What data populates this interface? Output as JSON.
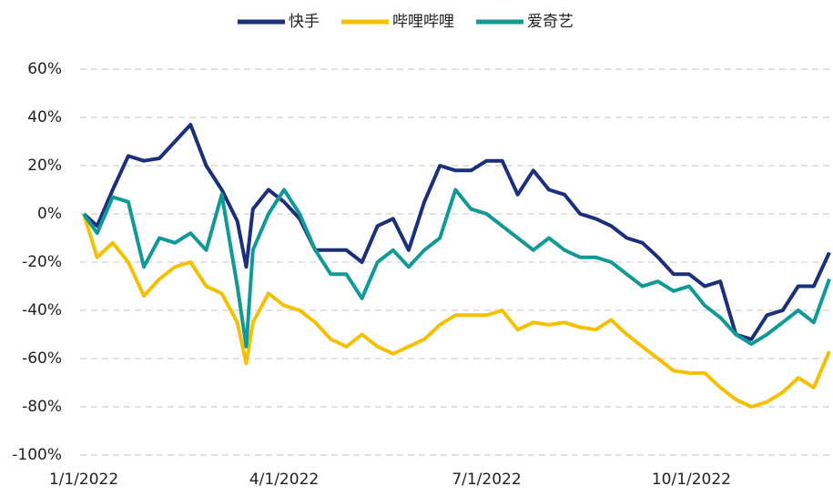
{
  "chart_data": {
    "type": "line",
    "x": [
      "1/1/2022",
      "1/7/2022",
      "1/14/2022",
      "1/21/2022",
      "1/28/2022",
      "2/4/2022",
      "2/11/2022",
      "2/18/2022",
      "2/25/2022",
      "3/4/2022",
      "3/11/2022",
      "3/15/2022",
      "3/18/2022",
      "3/25/2022",
      "4/1/2022",
      "4/8/2022",
      "4/15/2022",
      "4/22/2022",
      "4/29/2022",
      "5/6/2022",
      "5/13/2022",
      "5/20/2022",
      "5/27/2022",
      "6/3/2022",
      "6/10/2022",
      "6/17/2022",
      "6/24/2022",
      "7/1/2022",
      "7/8/2022",
      "7/15/2022",
      "7/22/2022",
      "7/29/2022",
      "8/5/2022",
      "8/12/2022",
      "8/19/2022",
      "8/26/2022",
      "9/2/2022",
      "9/9/2022",
      "9/16/2022",
      "9/23/2022",
      "9/30/2022",
      "10/7/2022",
      "10/14/2022",
      "10/21/2022",
      "10/28/2022",
      "11/4/2022",
      "11/11/2022",
      "11/18/2022",
      "11/25/2022",
      "12/2/2022"
    ],
    "series": [
      {
        "name": "快手",
        "color": "#1b2f7a",
        "values": [
          0,
          -5,
          10,
          24,
          22,
          23,
          30,
          37,
          20,
          10,
          -3,
          -22,
          2,
          10,
          5,
          -2,
          -15,
          -15,
          -15,
          -20,
          -5,
          -2,
          -15,
          5,
          20,
          18,
          18,
          22,
          22,
          8,
          18,
          10,
          8,
          0,
          -2,
          -5,
          -10,
          -12,
          -18,
          -25,
          -25,
          -30,
          -28,
          -50,
          -52,
          -42,
          -40,
          -30,
          -30,
          -16
        ]
      },
      {
        "name": "哔哩哔哩",
        "color": "#f5c000",
        "values": [
          0,
          -18,
          -12,
          -20,
          -34,
          -27,
          -22,
          -20,
          -30,
          -33,
          -45,
          -62,
          -45,
          -33,
          -38,
          -40,
          -45,
          -52,
          -55,
          -50,
          -55,
          -58,
          -55,
          -52,
          -46,
          -42,
          -42,
          -42,
          -40,
          -48,
          -45,
          -46,
          -45,
          -47,
          -48,
          -44,
          -50,
          -55,
          -60,
          -65,
          -66,
          -66,
          -72,
          -77,
          -80,
          -78,
          -74,
          -68,
          -72,
          -57
        ]
      },
      {
        "name": "爱奇艺",
        "color": "#0f9a96",
        "values": [
          0,
          -8,
          7,
          5,
          -22,
          -10,
          -12,
          -8,
          -15,
          8,
          -30,
          -55,
          -15,
          0,
          10,
          0,
          -15,
          -25,
          -25,
          -35,
          -20,
          -15,
          -22,
          -15,
          -10,
          10,
          2,
          0,
          -5,
          -10,
          -15,
          -10,
          -15,
          -18,
          -18,
          -20,
          -25,
          -30,
          -28,
          -32,
          -30,
          -38,
          -43,
          -50,
          -54,
          -50,
          -45,
          -40,
          -45,
          -27
        ]
      }
    ],
    "xlim": [
      "1/1/2022",
      "12/2/2022"
    ],
    "xticks": [
      "1/1/2022",
      "4/1/2022",
      "7/1/2022",
      "10/1/2022"
    ],
    "ylim": [
      -100,
      60
    ],
    "yticks": [
      {
        "value": -100,
        "label": "-100%"
      },
      {
        "value": -80,
        "label": "-80%"
      },
      {
        "value": -60,
        "label": "-60%"
      },
      {
        "value": -40,
        "label": "-40%"
      },
      {
        "value": -20,
        "label": "-20%"
      },
      {
        "value": 0,
        "label": "0%"
      },
      {
        "value": 20,
        "label": "20%"
      },
      {
        "value": 40,
        "label": "40%"
      },
      {
        "value": 60,
        "label": "60%"
      }
    ],
    "grid": true,
    "legend": "top"
  }
}
